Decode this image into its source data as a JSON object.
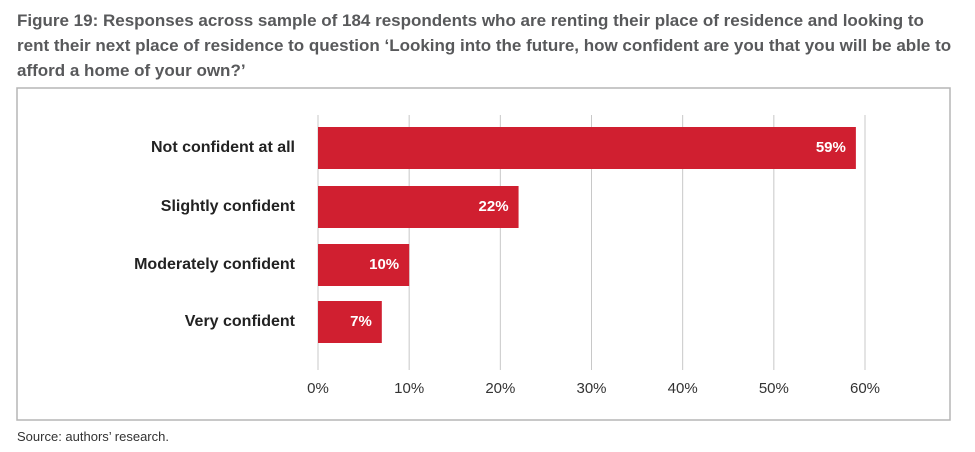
{
  "chart_data": {
    "type": "bar",
    "orientation": "horizontal",
    "title": "Figure 19: Responses across sample of 184 respondents who are renting their place of residence and looking to rent their next place of residence to question ‘Looking into the future, how confident are you that you will be able to afford a home of your own?’",
    "categories": [
      "Not confident at all",
      "Slightly confident",
      "Moderately confident",
      "Very confident"
    ],
    "values": [
      59,
      22,
      10,
      7
    ],
    "value_labels": [
      "59%",
      "22%",
      "10%",
      "7%"
    ],
    "color": "#d01f30",
    "xlim": [
      0,
      60
    ],
    "xticks": [
      {
        "value": 0,
        "label": "0%"
      },
      {
        "value": 10,
        "label": "10%"
      },
      {
        "value": 20,
        "label": "20%"
      },
      {
        "value": 30,
        "label": "30%"
      },
      {
        "value": 40,
        "label": "40%"
      },
      {
        "value": 50,
        "label": "50%"
      },
      {
        "value": 60,
        "label": "60%"
      }
    ],
    "grid": true,
    "source": "Source: authors’ research."
  }
}
